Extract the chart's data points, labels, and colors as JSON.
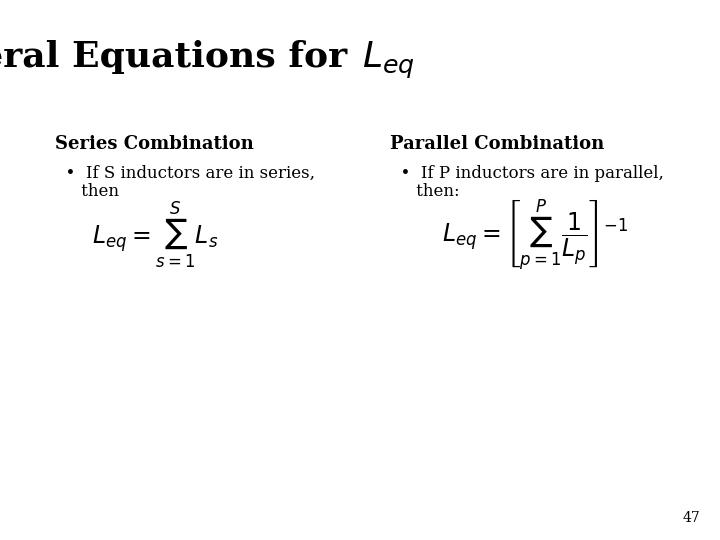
{
  "title_part1": "General Equations for ",
  "title_math": "$L_{eq}$",
  "bg_color": "#ffffff",
  "text_color": "#000000",
  "series_header": "Series Combination",
  "parallel_header": "Parallel Combination",
  "series_bullet_line1": "  •  If S inductors are in series,",
  "series_bullet_line2": "     then",
  "parallel_bullet_line1": "  •  If P inductors are in parallel,",
  "parallel_bullet_line2": "     then:",
  "series_eq": "$L_{eq} = \\sum_{s=1}^{S} L_s$",
  "parallel_eq": "$L_{eq} = \\left[\\sum_{p=1}^{P} \\dfrac{1}{L_p}\\right]^{-1}$",
  "page_number": "47",
  "title_fontsize": 26,
  "header_fontsize": 13,
  "bullet_fontsize": 12,
  "eq_fontsize": 17,
  "page_fontsize": 10
}
